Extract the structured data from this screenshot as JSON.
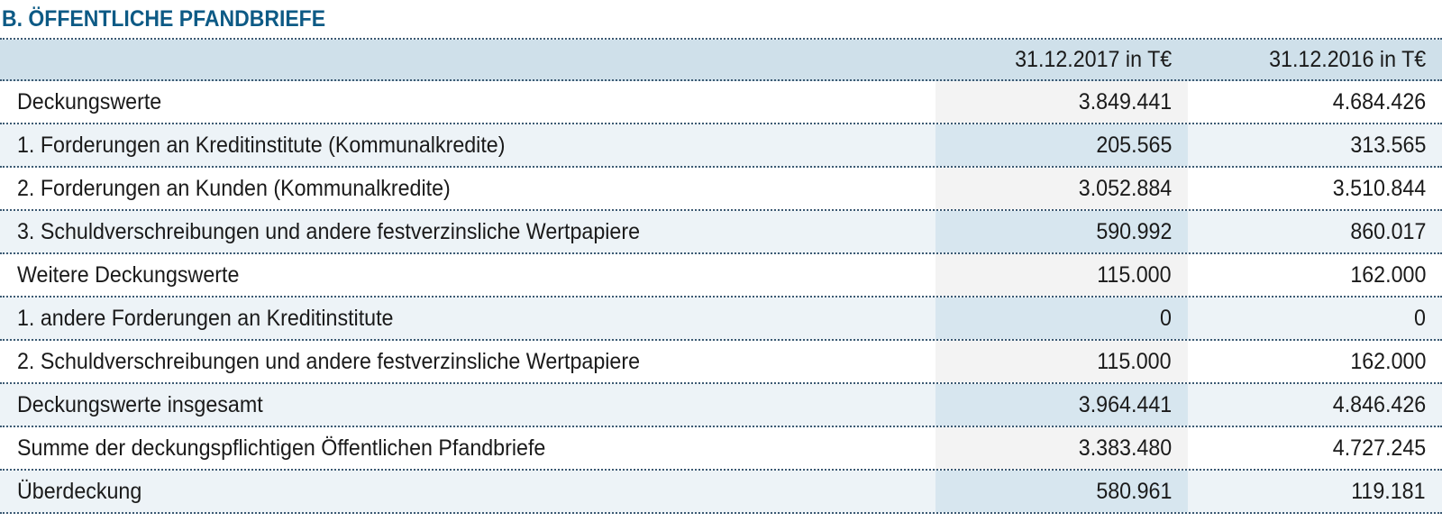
{
  "title": "B. ÖFFENTLICHE PFANDBRIEFE",
  "header": {
    "label": "",
    "col1": "31.12.2017 in T€",
    "col2": "31.12.2016 in T€"
  },
  "rows": [
    {
      "label": "Deckungswerte",
      "v2017": "3.849.441",
      "v2016": "4.684.426"
    },
    {
      "label": "1. Forderungen an Kreditinstitute (Kommunalkredite)",
      "v2017": "205.565",
      "v2016": "313.565"
    },
    {
      "label": "2. Forderungen an Kunden (Kommunalkredite)",
      "v2017": "3.052.884",
      "v2016": "3.510.844"
    },
    {
      "label": "3. Schuldverschreibungen und andere festverzinsliche Wertpapiere",
      "v2017": "590.992",
      "v2016": "860.017"
    },
    {
      "label": "Weitere Deckungswerte",
      "v2017": "115.000",
      "v2016": "162.000"
    },
    {
      "label": "1. andere Forderungen an Kreditinstitute",
      "v2017": "0",
      "v2016": "0"
    },
    {
      "label": "2. Schuldverschreibungen und andere festverzinsliche Wertpapiere",
      "v2017": "115.000",
      "v2016": "162.000"
    },
    {
      "label": "Deckungswerte insgesamt",
      "v2017": "3.964.441",
      "v2016": "4.846.426"
    },
    {
      "label": "Summe der deckungspflichtigen Öffentlichen Pfandbriefe",
      "v2017": "3.383.480",
      "v2016": "4.727.245"
    },
    {
      "label": "Überdeckung",
      "v2017": "580.961",
      "v2016": "119.181"
    }
  ]
}
